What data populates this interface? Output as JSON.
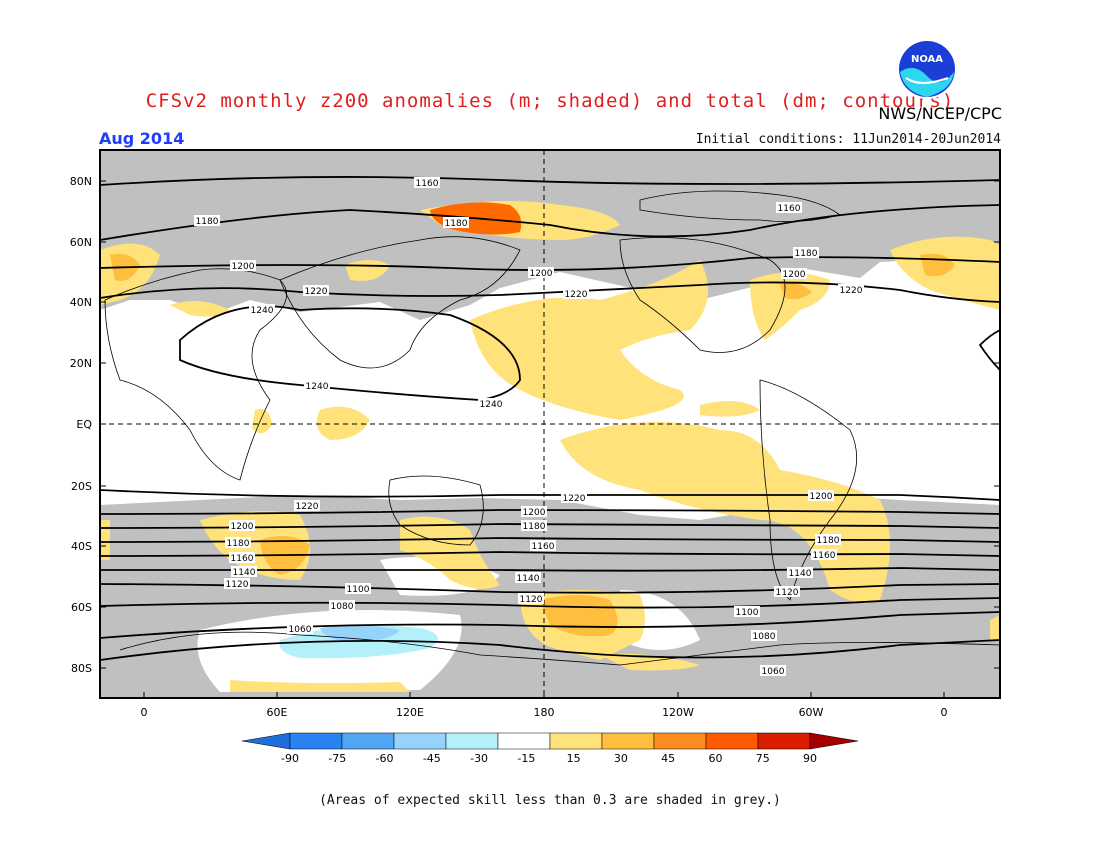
{
  "header": {
    "title": "CFSv2 monthly z200 anomalies (m; shaded) and total (dm; contours)",
    "agency": "NWS/NCEP/CPC",
    "month": "Aug 2014",
    "initial_conditions": "Initial conditions: 11Jun2014-20Jun2014",
    "logo_text": "NOAA"
  },
  "map": {
    "lat_labels": [
      "80N",
      "60N",
      "40N",
      "20N",
      "EQ",
      "20S",
      "40S",
      "60S",
      "80S"
    ],
    "lon_labels": [
      "0",
      "60E",
      "120E",
      "180",
      "120W",
      "60W",
      "0"
    ],
    "contour_labels": [
      "1160",
      "1180",
      "1180",
      "1160",
      "1180",
      "1200",
      "1200",
      "1200",
      "1220",
      "1220",
      "1220",
      "1240",
      "1240",
      "1240",
      "1220",
      "1220",
      "1200",
      "1180",
      "1160",
      "1200",
      "1180",
      "1160",
      "1200",
      "1180",
      "1160",
      "1140",
      "1120",
      "1140",
      "1120",
      "1140",
      "1120",
      "1100",
      "1100",
      "1080",
      "1080",
      "1060",
      "1060"
    ],
    "colors": {
      "grey": "#c0c0c0",
      "light_orange": "#ffe27a",
      "orange": "#ffbe3d",
      "dark_orange": "#ff6a00",
      "red_orange": "#ff3300",
      "light_blue": "#b4f0fa",
      "medium_blue": "#96d2fa"
    }
  },
  "colorbar": {
    "labels": [
      "-90",
      "-75",
      "-60",
      "-45",
      "-30",
      "-15",
      "15",
      "30",
      "45",
      "60",
      "75",
      "90"
    ],
    "colors": [
      "#1e6edc",
      "#2882f0",
      "#50a5f5",
      "#96d2fa",
      "#b4f0fa",
      "#ffffff",
      "#ffe27a",
      "#ffbe3d",
      "#ff8c1e",
      "#ff5a00",
      "#dc1e00",
      "#a50000"
    ]
  },
  "footnote": "(Areas of expected skill less than 0.3 are shaded in grey.)"
}
